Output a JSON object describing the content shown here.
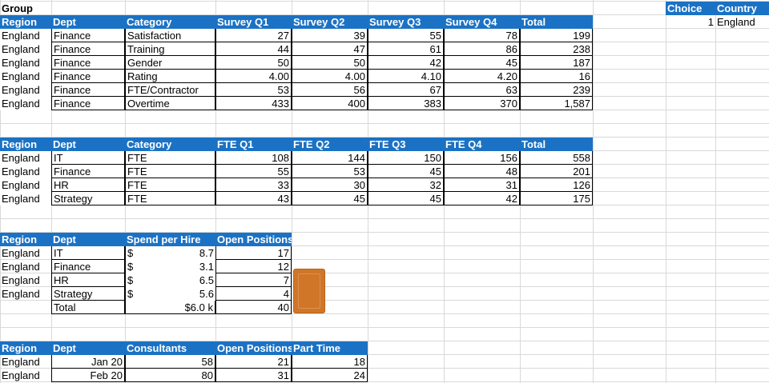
{
  "group_label": "Group",
  "choice_panel": {
    "headers": [
      "Choice",
      "Country"
    ],
    "values": [
      "1",
      "England"
    ]
  },
  "survey_table": {
    "headers": [
      "Region",
      "Dept",
      "Category",
      "Survey Q1",
      "Survey Q2",
      "Survey Q3",
      "Survey Q4",
      "Total"
    ],
    "rows": [
      [
        "England",
        "Finance",
        "Satisfaction",
        "27",
        "39",
        "55",
        "78",
        "199"
      ],
      [
        "England",
        "Finance",
        "Training",
        "44",
        "47",
        "61",
        "86",
        "238"
      ],
      [
        "England",
        "Finance",
        "Gender",
        "50",
        "50",
        "42",
        "45",
        "187"
      ],
      [
        "England",
        "Finance",
        "Rating",
        "4.00",
        "4.00",
        "4.10",
        "4.20",
        "16"
      ],
      [
        "England",
        "Finance",
        "FTE/Contractor",
        "53",
        "56",
        "67",
        "63",
        "239"
      ],
      [
        "England",
        "Finance",
        "Overtime",
        "433",
        "400",
        "383",
        "370",
        "1,587"
      ]
    ]
  },
  "fte_table": {
    "headers": [
      "Region",
      "Dept",
      "Category",
      "FTE Q1",
      "FTE Q2",
      "FTE Q3",
      "FTE Q4",
      "Total"
    ],
    "rows": [
      [
        "England",
        "IT",
        "FTE",
        "108",
        "144",
        "150",
        "156",
        "558"
      ],
      [
        "England",
        "Finance",
        "FTE",
        "55",
        "53",
        "45",
        "48",
        "201"
      ],
      [
        "England",
        "HR",
        "FTE",
        "33",
        "30",
        "32",
        "31",
        "126"
      ],
      [
        "England",
        "Strategy",
        "FTE",
        "43",
        "45",
        "45",
        "42",
        "175"
      ]
    ]
  },
  "spend_table": {
    "headers": [
      "Region",
      "Dept",
      "Spend per Hire",
      "Open Positions"
    ],
    "rows": [
      [
        "England",
        "IT",
        "$",
        "8.7",
        "17"
      ],
      [
        "England",
        "Finance",
        "$",
        "3.1",
        "12"
      ],
      [
        "England",
        "HR",
        "$",
        "6.5",
        "7"
      ],
      [
        "England",
        "Strategy",
        "$",
        "5.6",
        "4"
      ]
    ],
    "total_label": "Total",
    "total_spend": "$6.0 k",
    "total_positions": "40"
  },
  "consultants_table": {
    "headers": [
      "Region",
      "Dept",
      "Consultants",
      "Open Positions",
      "Part Time"
    ],
    "rows": [
      [
        "England",
        "Jan 20",
        "58",
        "21",
        "18"
      ],
      [
        "England",
        "Feb 20",
        "80",
        "31",
        "24"
      ]
    ]
  }
}
